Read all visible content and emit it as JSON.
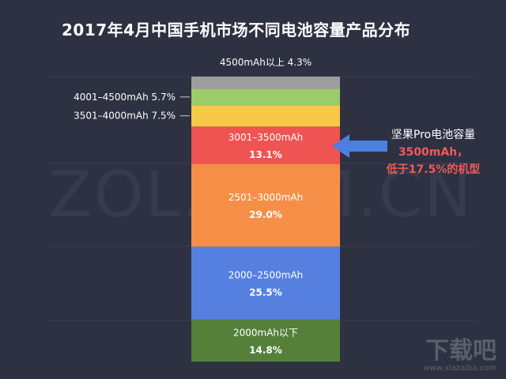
{
  "title": "2017年4月中国手机市场不同电池容量产品分布",
  "watermark": "ZOL.COM.CN",
  "logo": {
    "text": "下载吧",
    "url": "www.xiazaiba.com"
  },
  "callout": {
    "line1": "坚果Pro电池容量",
    "line2": "3500mAh，",
    "line3": "低于17.5%的机型",
    "highlight_color": "#f05a5a"
  },
  "chart_data": {
    "type": "bar",
    "stacked": true,
    "unit": "%",
    "series": [
      {
        "name": "2000mAh以下",
        "value": 14.8,
        "label": "14.8%",
        "color": "#55803a"
      },
      {
        "name": "2000–2500mAh",
        "value": 25.5,
        "label": "25.5%",
        "color": "#5580e0"
      },
      {
        "name": "2501–3000mAh",
        "value": 29.0,
        "label": "29.0%",
        "color": "#f58f48"
      },
      {
        "name": "3001–3500mAh",
        "value": 13.1,
        "label": "13.1%",
        "color": "#ef5452"
      },
      {
        "name": "3501–4000mAh",
        "value": 7.5,
        "label": "7.5%",
        "color": "#f7c948"
      },
      {
        "name": "4001–4500mAh",
        "value": 5.7,
        "label": "5.7%",
        "color": "#9ccc69"
      },
      {
        "name": "4500mAh以上",
        "value": 4.3,
        "label": "4.3%",
        "color": "#9e9e9e"
      }
    ]
  }
}
